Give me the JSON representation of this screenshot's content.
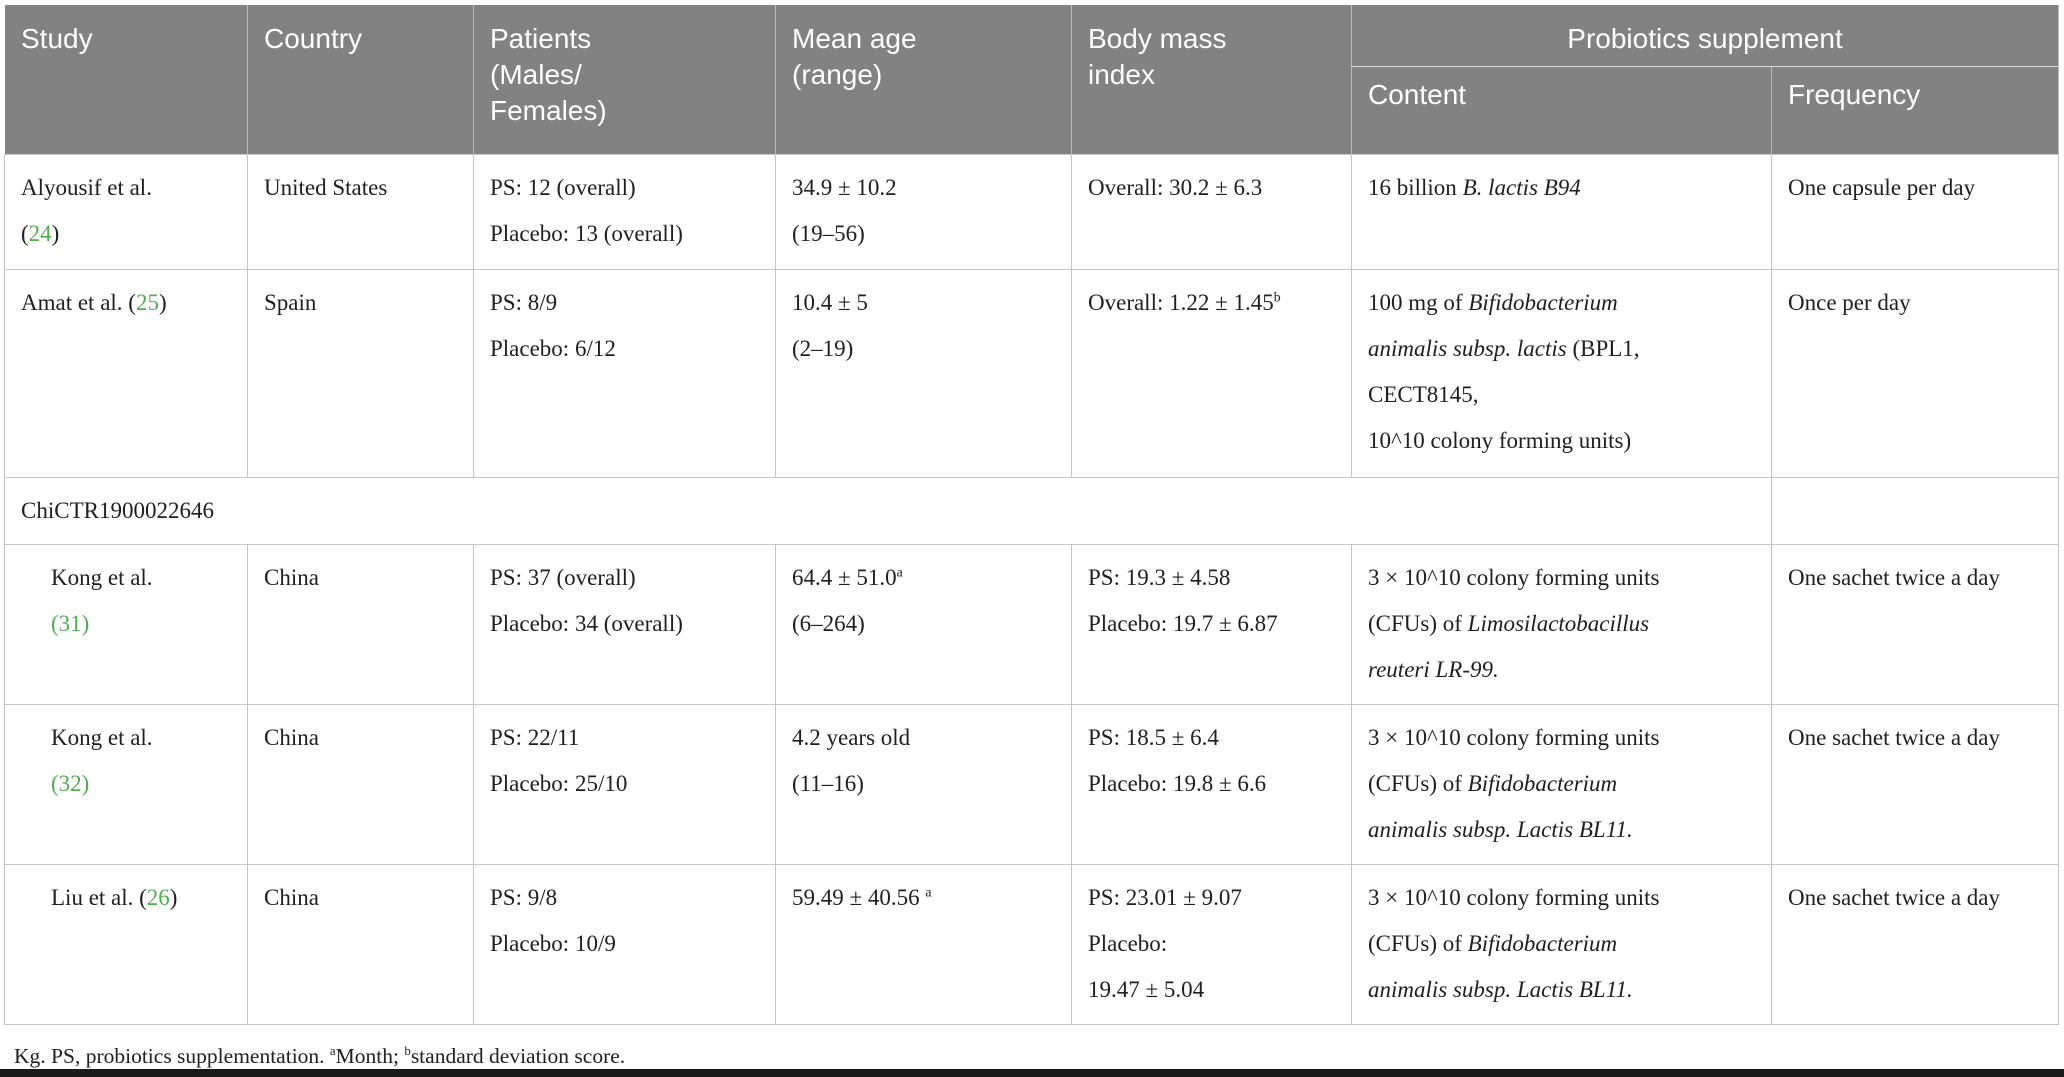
{
  "colors": {
    "header_bg": "#828282",
    "header_text": "#ffffff",
    "citation_green": "#52ad4f",
    "body_text": "#202020",
    "border": "#c5c5c5",
    "bottom_bar": "#1a1a1a"
  },
  "header": {
    "study": "Study",
    "country": "Country",
    "patients": "Patients\n(Males/\nFemales)",
    "mean_age": "Mean age\n(range)",
    "bmi": "Body mass\nindex",
    "probiotics_group": "Probiotics supplement",
    "content": "Content",
    "frequency": "Frequency"
  },
  "table": {
    "rows": [
      {
        "type": "data",
        "indent": false,
        "study": [
          [
            {
              "t": "Alyousif et al."
            }
          ],
          [
            {
              "t": "("
            },
            {
              "t": "24",
              "g": true
            },
            {
              "t": ")"
            }
          ]
        ],
        "country": [
          [
            {
              "t": "United States"
            }
          ]
        ],
        "patients": [
          [
            {
              "t": "PS: 12 (overall)"
            }
          ],
          [
            {
              "t": "Placebo: 13 (overall)"
            }
          ]
        ],
        "mean_age": [
          [
            {
              "t": "34.9 ± 10.2"
            }
          ],
          [
            {
              "t": "(19–56)"
            }
          ]
        ],
        "bmi": [
          [
            {
              "t": "Overall: 30.2 ± 6.3"
            }
          ]
        ],
        "content": [
          [
            {
              "t": "16 billion "
            },
            {
              "t": "B. lactis B94",
              "i": true
            }
          ]
        ],
        "frequency": [
          [
            {
              "t": "One capsule per day"
            }
          ]
        ]
      },
      {
        "type": "data",
        "indent": false,
        "study": [
          [
            {
              "t": "Amat et al. ("
            },
            {
              "t": "25",
              "g": true
            },
            {
              "t": ")"
            }
          ]
        ],
        "country": [
          [
            {
              "t": "Spain"
            }
          ]
        ],
        "patients": [
          [
            {
              "t": "PS: 8/9"
            }
          ],
          [
            {
              "t": "Placebo: 6/12"
            }
          ]
        ],
        "mean_age": [
          [
            {
              "t": "10.4 ± 5"
            }
          ],
          [
            {
              "t": "(2–19)"
            }
          ]
        ],
        "bmi": [
          [
            {
              "t": "Overall: 1.22 ± 1.45"
            },
            {
              "t": "b",
              "sup": true
            }
          ]
        ],
        "content": [
          [
            {
              "t": "100 mg of "
            },
            {
              "t": "Bifidobacterium",
              "i": true
            }
          ],
          [
            {
              "t": "animalis subsp. lactis",
              "i": true
            },
            {
              "t": " (BPL1,"
            }
          ],
          [
            {
              "t": "CECT8145,"
            }
          ],
          [
            {
              "t": "10^10 colony forming units)"
            }
          ]
        ],
        "frequency": [
          [
            {
              "t": "Once per day"
            }
          ]
        ]
      },
      {
        "type": "group",
        "label": [
          [
            {
              "t": "ChiCTR1900022646"
            }
          ]
        ]
      },
      {
        "type": "data",
        "indent": true,
        "study": [
          [
            {
              "t": "Kong et al."
            }
          ],
          [
            {
              "t": "(31)",
              "g": true
            }
          ]
        ],
        "country": [
          [
            {
              "t": "China"
            }
          ]
        ],
        "patients": [
          [
            {
              "t": "PS: 37 (overall)"
            }
          ],
          [
            {
              "t": "Placebo: 34 (overall)"
            }
          ]
        ],
        "mean_age": [
          [
            {
              "t": "64.4 ± 51.0"
            },
            {
              "t": "a",
              "sup": true
            }
          ],
          [
            {
              "t": "(6–264)"
            }
          ]
        ],
        "bmi": [
          [
            {
              "t": "PS: 19.3 ± 4.58"
            }
          ],
          [
            {
              "t": "Placebo: 19.7 ± 6.87"
            }
          ]
        ],
        "content": [
          [
            {
              "t": "3 × 10^10 colony forming units"
            }
          ],
          [
            {
              "t": "(CFUs) of "
            },
            {
              "t": "Limosilactobacillus",
              "i": true
            }
          ],
          [
            {
              "t": "reuteri LR-99.",
              "i": true
            }
          ]
        ],
        "frequency": [
          [
            {
              "t": "One sachet twice a day"
            }
          ]
        ]
      },
      {
        "type": "data",
        "indent": true,
        "study": [
          [
            {
              "t": "Kong et al."
            }
          ],
          [
            {
              "t": "(32)",
              "g": true
            }
          ]
        ],
        "country": [
          [
            {
              "t": "China"
            }
          ]
        ],
        "patients": [
          [
            {
              "t": "PS: 22/11"
            }
          ],
          [
            {
              "t": "Placebo: 25/10"
            }
          ]
        ],
        "mean_age": [
          [
            {
              "t": "4.2 years old"
            }
          ],
          [
            {
              "t": "(11–16)"
            }
          ]
        ],
        "bmi": [
          [
            {
              "t": "PS: 18.5 ± 6.4"
            }
          ],
          [
            {
              "t": "Placebo: 19.8 ± 6.6"
            }
          ]
        ],
        "content": [
          [
            {
              "t": "3 × 10^10 colony forming units"
            }
          ],
          [
            {
              "t": "(CFUs) of "
            },
            {
              "t": "Bifidobacterium",
              "i": true
            }
          ],
          [
            {
              "t": "animalis subsp. Lactis BL11.",
              "i": true
            }
          ]
        ],
        "frequency": [
          [
            {
              "t": "One sachet twice a day"
            }
          ]
        ]
      },
      {
        "type": "data",
        "indent": true,
        "study": [
          [
            {
              "t": "Liu et al. ("
            },
            {
              "t": "26",
              "g": true
            },
            {
              "t": ")"
            }
          ]
        ],
        "country": [
          [
            {
              "t": "China"
            }
          ]
        ],
        "patients": [
          [
            {
              "t": "PS: 9/8"
            }
          ],
          [
            {
              "t": "Placebo: 10/9"
            }
          ]
        ],
        "mean_age": [
          [
            {
              "t": "59.49 ± 40.56 "
            },
            {
              "t": "a",
              "sup": true
            }
          ]
        ],
        "bmi": [
          [
            {
              "t": "PS: 23.01 ± 9.07"
            }
          ],
          [
            {
              "t": "Placebo:"
            }
          ],
          [
            {
              "t": "19.47 ± 5.04"
            }
          ]
        ],
        "content": [
          [
            {
              "t": "3 × 10^10 colony forming units"
            }
          ],
          [
            {
              "t": "(CFUs) of "
            },
            {
              "t": "Bifidobacterium",
              "i": true
            }
          ],
          [
            {
              "t": "animalis subsp. Lactis BL11.",
              "i": true
            }
          ]
        ],
        "frequency": [
          [
            {
              "t": "One sachet twice a day"
            }
          ]
        ]
      }
    ],
    "footnote": [
      {
        "t": "Kg. PS, probiotics supplementation. "
      },
      {
        "t": "a",
        "sup": true
      },
      {
        "t": "Month; "
      },
      {
        "t": "b",
        "sup": true
      },
      {
        "t": "standard deviation score."
      }
    ]
  }
}
